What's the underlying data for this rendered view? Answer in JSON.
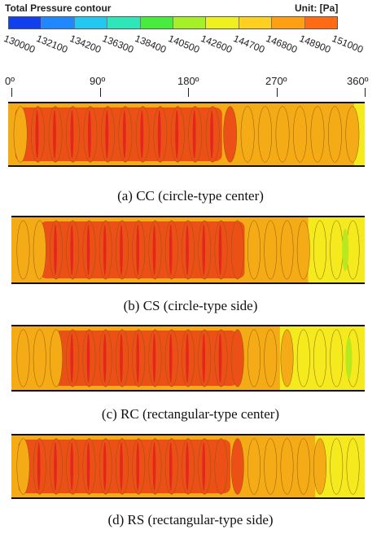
{
  "legend": {
    "title": "Total Pressure contour",
    "unit": "Unit: [Pa]",
    "colors": [
      "#1040ee",
      "#1f88ff",
      "#22c8f0",
      "#2ee6b8",
      "#48ec3c",
      "#a6f028",
      "#f0f020",
      "#ffd020",
      "#ffa014",
      "#ff6a12"
    ],
    "ticks": [
      "130000",
      "132100",
      "134200",
      "136300",
      "138400",
      "140500",
      "142600",
      "144700",
      "146800",
      "148900",
      "151000"
    ]
  },
  "axis": {
    "angles": [
      "0º",
      "90º",
      "180º",
      "270º",
      "360º"
    ]
  },
  "panels": [
    {
      "caption": "(a)  CC  (circle-type  center)"
    },
    {
      "caption": "(b)  CS  (circle-type  side)"
    },
    {
      "caption": "(c)  RC  (rectangular-type  center)"
    },
    {
      "caption": "(d)  RS  (rectangular-type  side)"
    }
  ],
  "contour_colors": {
    "light_orange": "#f4ab16",
    "orange_red": "#ec5016",
    "red": "#e0281c",
    "yellow": "#f4ea1e",
    "green_yellow": "#b8e81e"
  }
}
